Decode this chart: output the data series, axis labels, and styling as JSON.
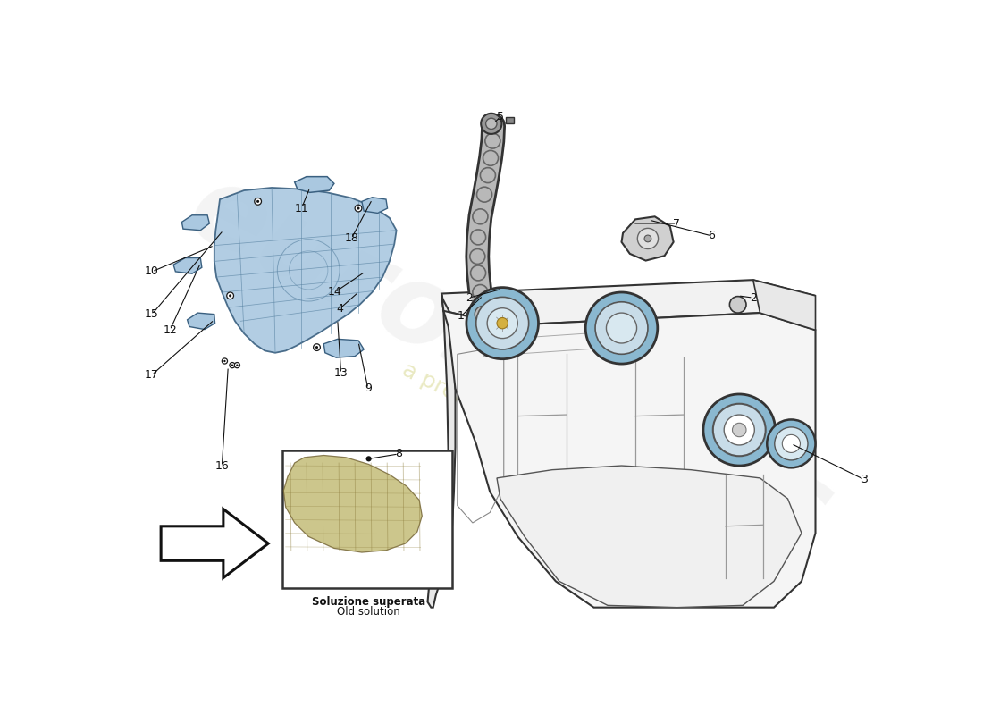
{
  "bg_color": "#ffffff",
  "line_color": "#1a1a1a",
  "foam_fill": "#aac8e0",
  "foam_edge": "#3a6080",
  "tank_fill_top": "#f0f0f0",
  "tank_fill_side": "#e8e8e8",
  "tank_fill_front": "#ebebeb",
  "ring_fill": "#6aa8cc",
  "ring_edge": "#2a5070",
  "watermark1_color": "#e8e8e8",
  "watermark2_color": "#d8d890",
  "inset_caption1": "Soluzione superata",
  "inset_caption2": "Old solution",
  "label_fontsize": 9,
  "leader_lw": 0.8,
  "leader_color": "#111111"
}
